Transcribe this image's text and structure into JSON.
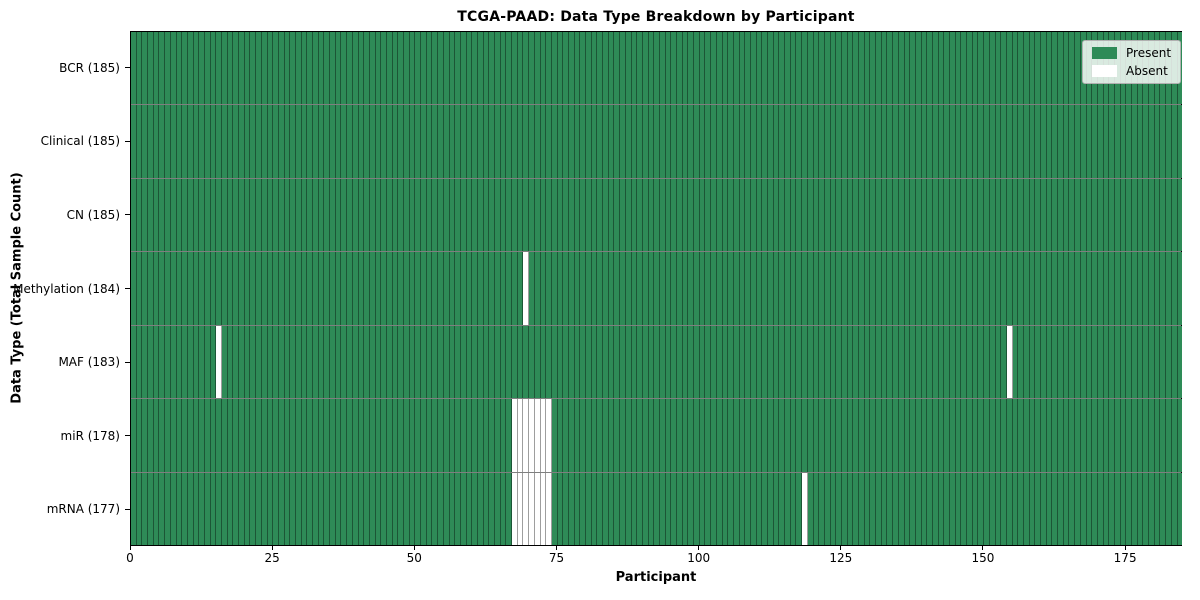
{
  "chart_data": {
    "type": "heatmap",
    "title": "TCGA-PAAD: Data Type Breakdown by Participant",
    "xlabel": "Participant",
    "ylabel": "Data Type (Total Sample Count)",
    "n_participants": 185,
    "x_range": [
      0,
      185
    ],
    "x_ticks": [
      0,
      25,
      50,
      75,
      100,
      125,
      150,
      175
    ],
    "grid": "cell-edges",
    "colors": {
      "present": "#2e8b57",
      "absent": "#ffffff",
      "cell_edge": "rgba(0,0,0,0.38)",
      "row_edge": "rgba(0,0,0,0.5)"
    },
    "legend": {
      "position": "upper right",
      "entries": [
        {
          "label": "Present",
          "color": "#2e8b57"
        },
        {
          "label": "Absent",
          "color": "#ffffff"
        }
      ]
    },
    "rows": [
      {
        "label": "BCR (185)",
        "data_type": "BCR",
        "total_samples": 185,
        "absent_participants": []
      },
      {
        "label": "Clinical (185)",
        "data_type": "Clinical",
        "total_samples": 185,
        "absent_participants": []
      },
      {
        "label": "CN (185)",
        "data_type": "CN",
        "total_samples": 185,
        "absent_participants": []
      },
      {
        "label": "Methylation (184)",
        "data_type": "Methylation",
        "total_samples": 184,
        "absent_participants": [
          69
        ]
      },
      {
        "label": "MAF (183)",
        "data_type": "MAF",
        "total_samples": 183,
        "absent_participants": [
          15,
          154
        ]
      },
      {
        "label": "miR (178)",
        "data_type": "miR",
        "total_samples": 178,
        "absent_participants": [
          67,
          68,
          69,
          70,
          71,
          72,
          73
        ]
      },
      {
        "label": "mRNA (177)",
        "data_type": "mRNA",
        "total_samples": 177,
        "absent_participants": [
          67,
          68,
          69,
          70,
          71,
          72,
          73,
          118
        ]
      }
    ]
  }
}
